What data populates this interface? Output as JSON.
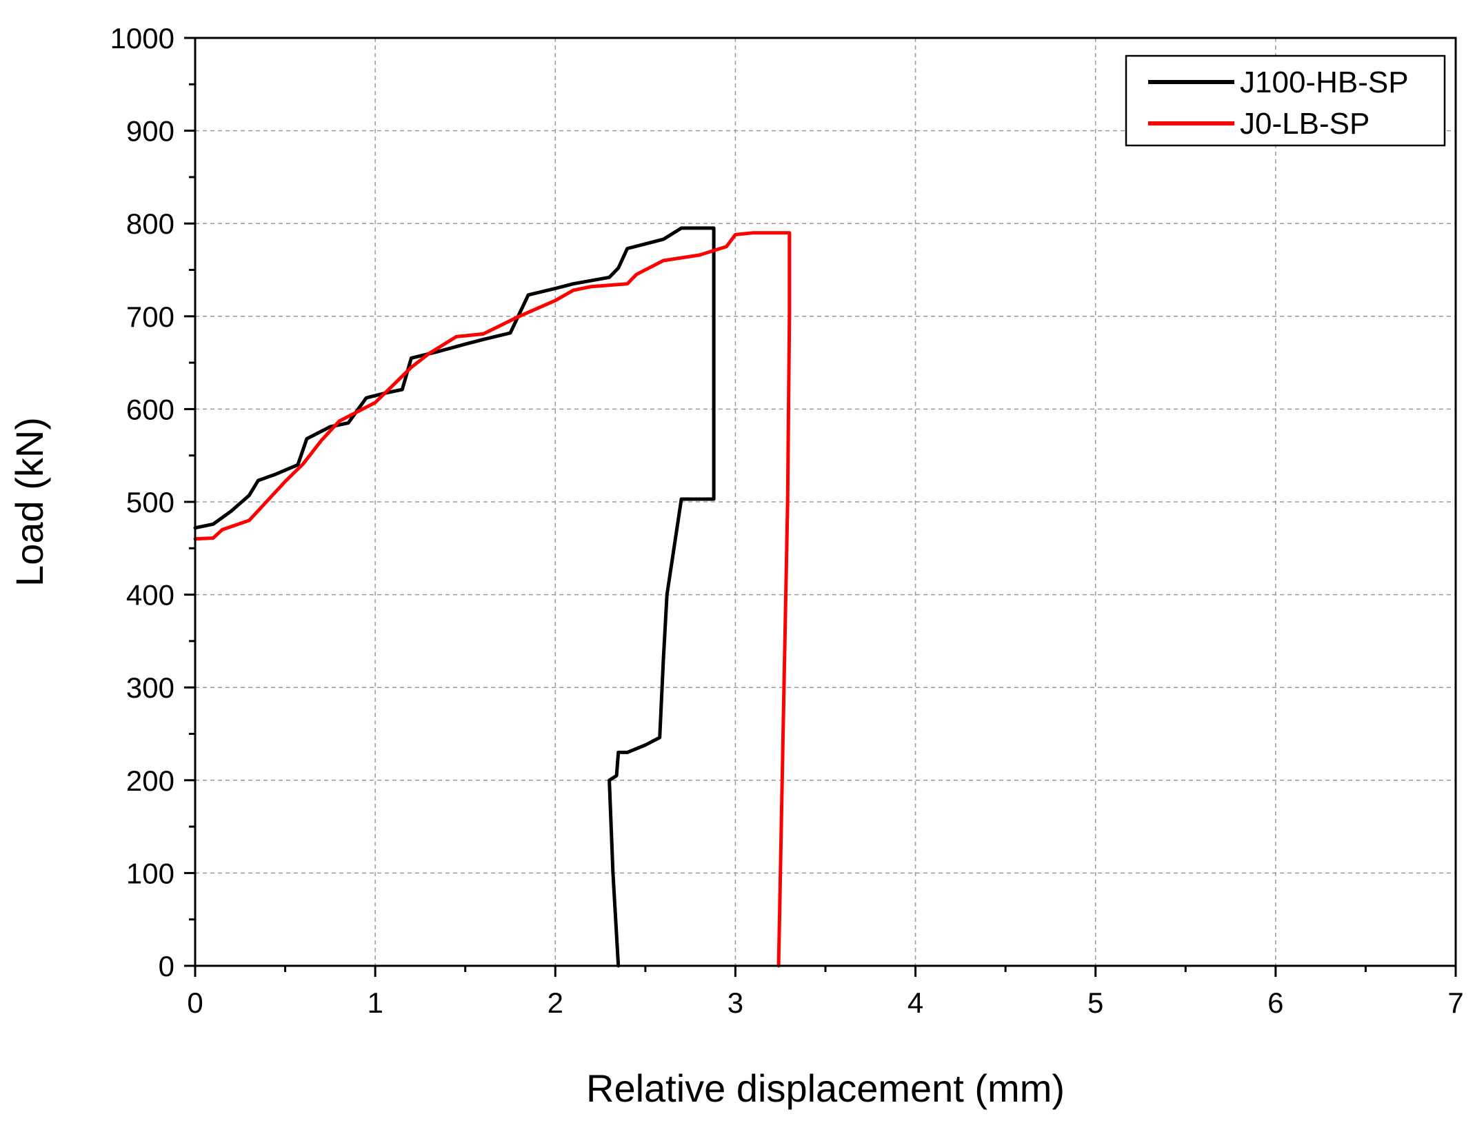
{
  "chart_data": {
    "type": "line",
    "title": "",
    "xlabel": "Relative displacement (mm)",
    "ylabel": "Load (kN)",
    "xlim": [
      0,
      7
    ],
    "ylim": [
      0,
      1000
    ],
    "x_ticks": [
      0,
      1,
      2,
      3,
      4,
      5,
      6,
      7
    ],
    "x_tick_labels": [
      "0",
      "1",
      "2",
      "3",
      "4",
      "5",
      "6",
      "7"
    ],
    "y_ticks": [
      0,
      100,
      200,
      300,
      400,
      500,
      600,
      700,
      800,
      900,
      1000
    ],
    "y_tick_labels": [
      "0",
      "100",
      "200",
      "300",
      "400",
      "500",
      "600",
      "700",
      "800",
      "900",
      "1000"
    ],
    "grid": true,
    "legend_position": "top-right",
    "series": [
      {
        "name": "J100-HB-SP",
        "color": "#000000",
        "points": [
          [
            0.0,
            472
          ],
          [
            0.1,
            476
          ],
          [
            0.2,
            490
          ],
          [
            0.3,
            507
          ],
          [
            0.35,
            523
          ],
          [
            0.45,
            530
          ],
          [
            0.57,
            540
          ],
          [
            0.62,
            568
          ],
          [
            0.75,
            581
          ],
          [
            0.85,
            585
          ],
          [
            0.95,
            612
          ],
          [
            1.05,
            617
          ],
          [
            1.15,
            621
          ],
          [
            1.2,
            655
          ],
          [
            1.35,
            662
          ],
          [
            1.5,
            670
          ],
          [
            1.6,
            675
          ],
          [
            1.75,
            682
          ],
          [
            1.85,
            723
          ],
          [
            2.0,
            730
          ],
          [
            2.1,
            735
          ],
          [
            2.3,
            742
          ],
          [
            2.35,
            752
          ],
          [
            2.4,
            773
          ],
          [
            2.5,
            778
          ],
          [
            2.6,
            783
          ],
          [
            2.7,
            795
          ],
          [
            2.88,
            795
          ],
          [
            2.88,
            503
          ],
          [
            2.7,
            503
          ],
          [
            2.62,
            400
          ],
          [
            2.6,
            330
          ],
          [
            2.58,
            246
          ],
          [
            2.5,
            238
          ],
          [
            2.4,
            230
          ],
          [
            2.35,
            230
          ],
          [
            2.34,
            205
          ],
          [
            2.3,
            200
          ],
          [
            2.32,
            100
          ],
          [
            2.35,
            0
          ]
        ]
      },
      {
        "name": "J0-LB-SP",
        "color": "#ff0000",
        "points": [
          [
            0.0,
            460
          ],
          [
            0.1,
            461
          ],
          [
            0.15,
            470
          ],
          [
            0.3,
            480
          ],
          [
            0.5,
            522
          ],
          [
            0.6,
            541
          ],
          [
            0.7,
            566
          ],
          [
            0.8,
            587
          ],
          [
            1.0,
            607
          ],
          [
            1.1,
            626
          ],
          [
            1.2,
            645
          ],
          [
            1.3,
            660
          ],
          [
            1.45,
            678
          ],
          [
            1.6,
            681
          ],
          [
            1.8,
            700
          ],
          [
            2.0,
            717
          ],
          [
            2.1,
            728
          ],
          [
            2.2,
            732
          ],
          [
            2.4,
            735
          ],
          [
            2.45,
            745
          ],
          [
            2.6,
            760
          ],
          [
            2.8,
            766
          ],
          [
            2.95,
            775
          ],
          [
            3.0,
            788
          ],
          [
            3.1,
            790
          ],
          [
            3.3,
            790
          ],
          [
            3.3,
            700
          ],
          [
            3.29,
            500
          ],
          [
            3.27,
            300
          ],
          [
            3.25,
            100
          ],
          [
            3.24,
            0
          ]
        ]
      }
    ]
  }
}
